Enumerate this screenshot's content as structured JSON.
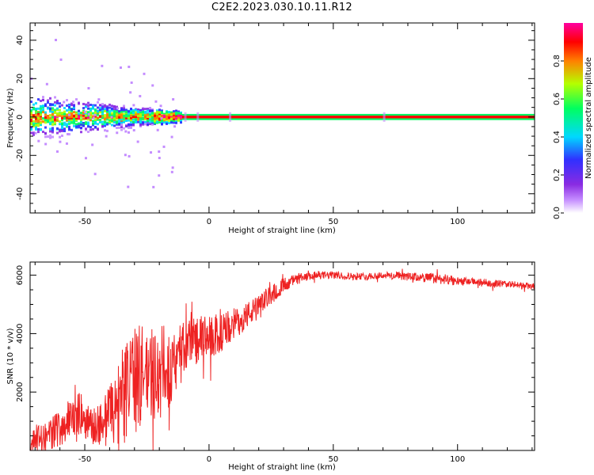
{
  "title": "C2E2.2023.030.10.11.R12",
  "chart_data": [
    {
      "type": "heatmap",
      "title": "",
      "xlabel": "Height of straight line (km)",
      "ylabel": "Frequency (Hz)",
      "xlim": [
        -72,
        131
      ],
      "ylim": [
        -50,
        49
      ],
      "xticks": [
        -50,
        0,
        50,
        100
      ],
      "yticks": [
        -40,
        -20,
        0,
        20,
        40
      ],
      "colorbar": {
        "label": "Normalized spectral amplitude",
        "range": [
          0.0,
          1.0
        ],
        "ticks": [
          "0.0",
          "0.2",
          "0.4",
          "0.6",
          "0.8"
        ],
        "colors": [
          "#ffffff",
          "#c48cff",
          "#8a2be2",
          "#3030ff",
          "#00d8ff",
          "#00ff60",
          "#b4ff00",
          "#ff8000",
          "#ff0000",
          "#ff00a0"
        ]
      },
      "signal": {
        "center_freq_hz": 0,
        "noisy_region_km": [
          -72,
          -14
        ],
        "noisy_spread_hz": 12,
        "steady_band_km": [
          -14,
          131
        ]
      }
    },
    {
      "type": "line",
      "title": "",
      "xlabel": "Height of straight line (km)",
      "ylabel": "SNR (10 * v/v)",
      "xlim": [
        -72,
        131
      ],
      "ylim": [
        0,
        6450
      ],
      "xticks": [
        -50,
        0,
        50,
        100
      ],
      "yticks": [
        2000,
        4000,
        6000
      ],
      "series": [
        {
          "name": "SNR",
          "color": "#ee2222",
          "x": [
            -72,
            -65,
            -58,
            -52,
            -47,
            -42,
            -37,
            -32,
            -27,
            -22,
            -17,
            -12,
            -7,
            -2,
            3,
            8,
            13,
            18,
            23,
            28,
            33,
            38,
            43,
            50,
            60,
            70,
            80,
            90,
            100,
            110,
            120,
            131
          ],
          "y": [
            300,
            500,
            900,
            1300,
            800,
            1000,
            1500,
            2200,
            2600,
            2700,
            2700,
            3400,
            3800,
            3800,
            3900,
            4200,
            4500,
            4800,
            5200,
            5550,
            5800,
            5900,
            6000,
            6000,
            5950,
            6000,
            5950,
            5900,
            5800,
            5750,
            5700,
            5600
          ],
          "noise_amplitude": [
            400,
            500,
            700,
            700,
            600,
            900,
            1500,
            1800,
            1800,
            1800,
            1500,
            900,
            900,
            800,
            700,
            600,
            500,
            400,
            350,
            300,
            200,
            150,
            150,
            130,
            120,
            120,
            140,
            180,
            150,
            130,
            120,
            120
          ]
        }
      ]
    }
  ]
}
